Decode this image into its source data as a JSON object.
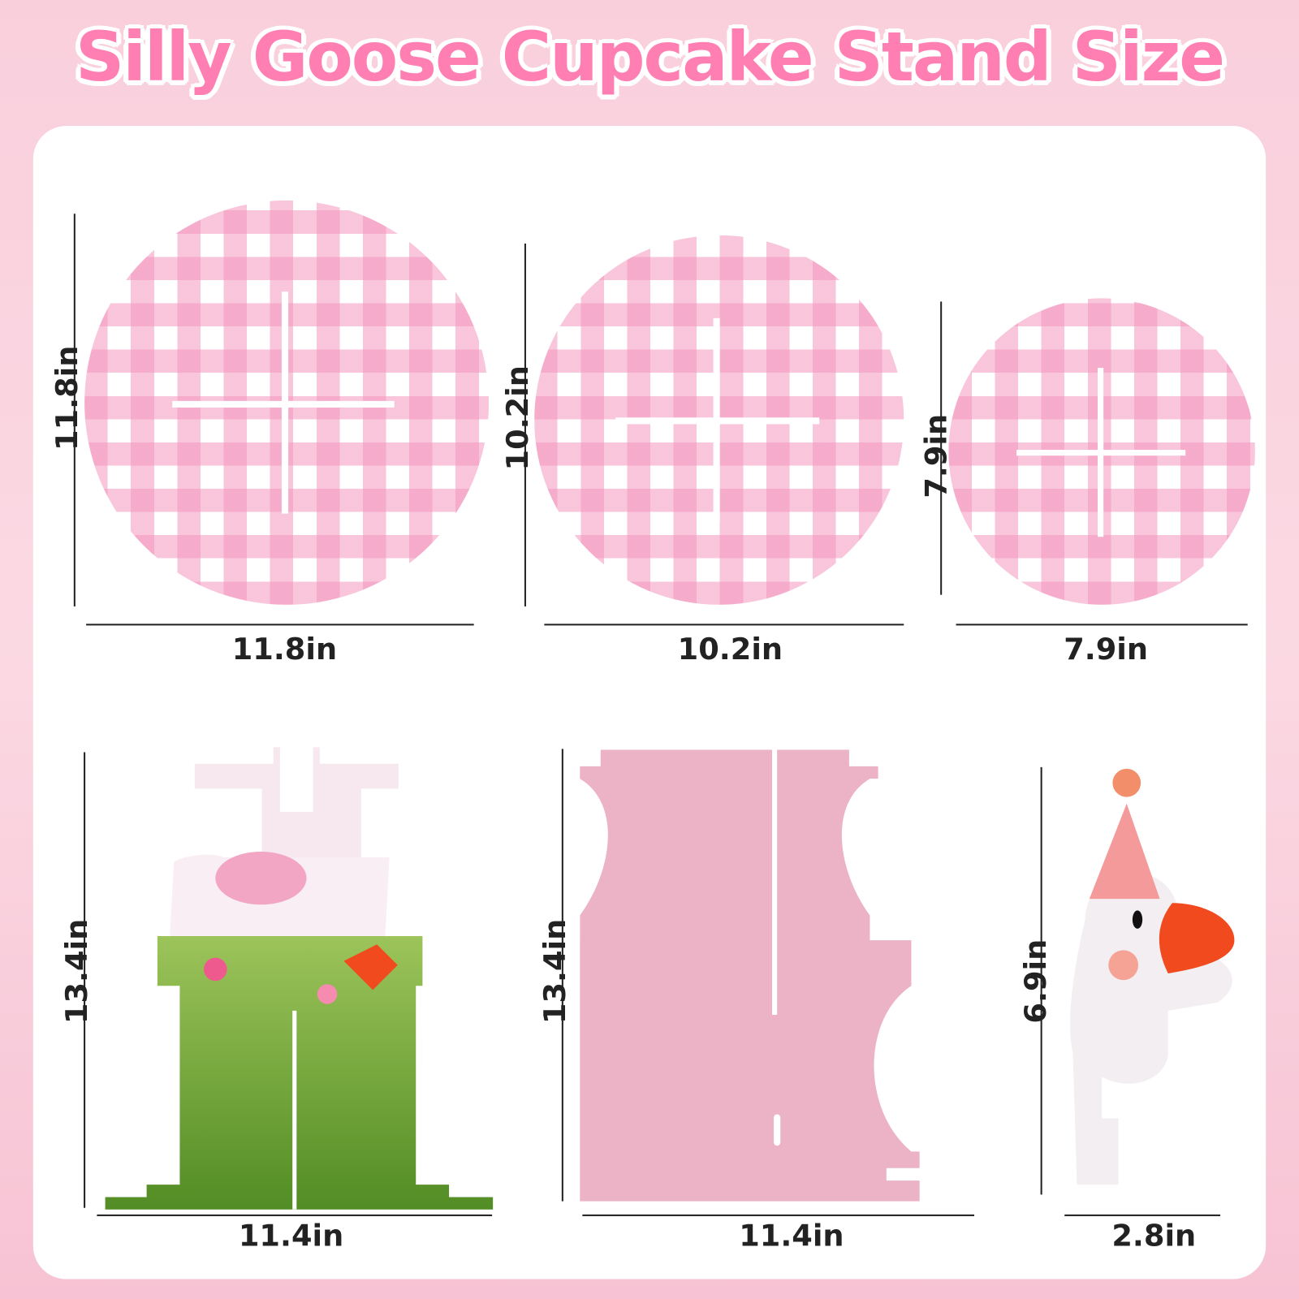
{
  "title": "Silly Goose Cupcake Stand Size",
  "colors": {
    "title": "#ff7fb3",
    "gingham": "#f496be",
    "stand_pink": "#ecb3c6",
    "grass": "#6d9a2e",
    "beak": "#f04a1e"
  },
  "pieces": [
    {
      "name": "large-plate",
      "height": "11.8in",
      "width": "11.8in"
    },
    {
      "name": "medium-plate",
      "height": "10.2in",
      "width": "10.2in"
    },
    {
      "name": "small-plate",
      "height": "7.9in",
      "width": "7.9in"
    },
    {
      "name": "grass-support",
      "height": "13.4in",
      "width": "11.4in"
    },
    {
      "name": "pink-support",
      "height": "13.4in",
      "width": "11.4in"
    },
    {
      "name": "goose-topper",
      "height": "6.9in",
      "width": "2.8in"
    }
  ]
}
